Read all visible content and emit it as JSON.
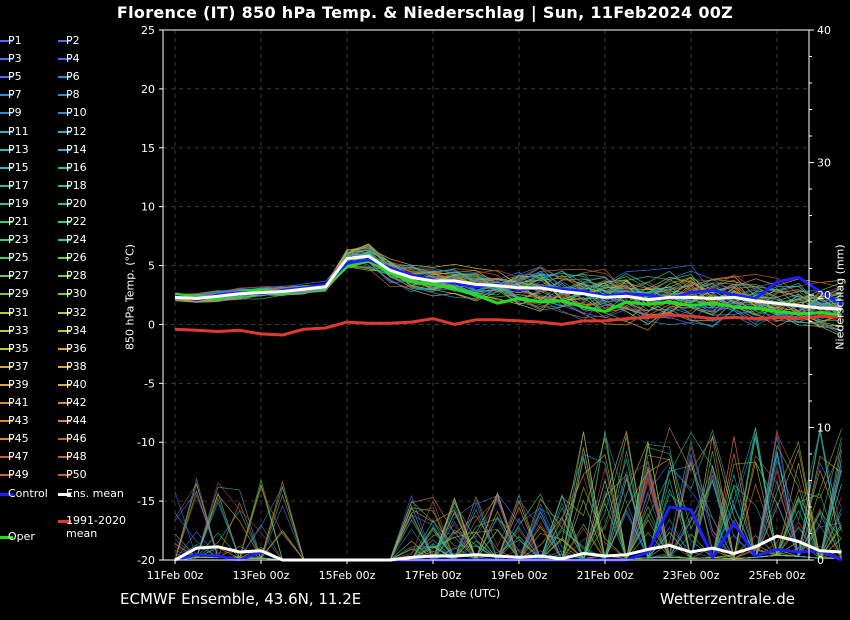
{
  "header": {
    "title": "Florence  (IT)  850 hPa Temp. & Niederschlag | Sun, 11Feb2024 00Z"
  },
  "footer": {
    "left": "ECMWF Ensemble, 43.6N, 11.2E",
    "right": "Wetterzentrale.de"
  },
  "colors": {
    "background": "#000000",
    "ens_mean": "#ffffff",
    "control": "#1e1eff",
    "oper": "#22dd22",
    "climate_mean": "#e03a30"
  },
  "chart_data": {
    "type": "line",
    "x_unit": "date (UTC)",
    "x_ticks": [
      "11Feb 00z",
      "13Feb 00z",
      "15Feb 00z",
      "17Feb 00z",
      "19Feb 00z",
      "21Feb 00z",
      "23Feb 00z",
      "25Feb 00z"
    ],
    "x": [
      "11Feb 00z",
      "11Feb 12z",
      "12Feb 00z",
      "12Feb 12z",
      "13Feb 00z",
      "13Feb 12z",
      "14Feb 00z",
      "14Feb 12z",
      "15Feb 00z",
      "15Feb 12z",
      "16Feb 00z",
      "16Feb 12z",
      "17Feb 00z",
      "17Feb 12z",
      "18Feb 00z",
      "18Feb 12z",
      "19Feb 00z",
      "19Feb 12z",
      "20Feb 00z",
      "20Feb 12z",
      "21Feb 00z",
      "21Feb 12z",
      "22Feb 00z",
      "22Feb 12z",
      "23Feb 00z",
      "23Feb 12z",
      "24Feb 00z",
      "24Feb 12z",
      "25Feb 00z",
      "25Feb 12z",
      "26Feb 00z",
      "26Feb 12z"
    ],
    "xlabel": "Date (UTC)",
    "ylabel_left": "850 hPa Temp. (°C)",
    "ylabel_right": "Niederschlag (mm)",
    "ylim_left": [
      -20,
      25
    ],
    "ylim_right": [
      0,
      40
    ],
    "yticks_left": [
      "25",
      "20",
      "15",
      "10",
      "5",
      "0",
      "-5",
      "-10",
      "-15",
      "-20"
    ],
    "yticks_right": [
      "40",
      "30",
      "20",
      "10",
      "0"
    ],
    "grid": true,
    "legend_position": "left",
    "legend": [
      "P1",
      "P2",
      "P3",
      "P4",
      "P5",
      "P6",
      "P7",
      "P8",
      "P9",
      "P10",
      "P11",
      "P12",
      "P13",
      "P14",
      "P15",
      "P16",
      "P17",
      "P18",
      "P19",
      "P20",
      "P21",
      "P22",
      "P23",
      "P24",
      "P25",
      "P26",
      "P27",
      "P28",
      "P29",
      "P30",
      "P31",
      "P32",
      "P33",
      "P34",
      "P35",
      "P36",
      "P37",
      "P38",
      "P39",
      "P40",
      "P41",
      "P42",
      "P43",
      "P44",
      "P45",
      "P46",
      "P47",
      "P48",
      "P49",
      "P50",
      "Control",
      "Ens. mean",
      "1991-2020\nmean",
      "Oper"
    ],
    "series": [
      {
        "name": "Ens. mean",
        "axis": "temp",
        "color": "#ffffff",
        "values": [
          2.3,
          2.2,
          2.4,
          2.6,
          2.7,
          2.8,
          3.0,
          3.2,
          5.6,
          5.8,
          4.6,
          4.0,
          3.7,
          3.7,
          3.4,
          3.3,
          3.1,
          3.1,
          2.8,
          2.6,
          2.3,
          2.4,
          2.1,
          2.3,
          2.3,
          2.2,
          2.3,
          2.0,
          1.8,
          1.6,
          1.4,
          1.3
        ]
      },
      {
        "name": "1991-2020\nmean",
        "axis": "temp",
        "color": "#e03a30",
        "values": [
          -0.4,
          -0.5,
          -0.6,
          -0.5,
          -0.8,
          -0.9,
          -0.4,
          -0.3,
          0.2,
          0.1,
          0.1,
          0.2,
          0.5,
          0.0,
          0.4,
          0.4,
          0.3,
          0.2,
          0.0,
          0.3,
          0.3,
          0.5,
          0.6,
          0.8,
          0.7,
          0.5,
          0.6,
          0.5,
          0.6,
          0.5,
          0.7,
          0.6
        ]
      },
      {
        "name": "Control",
        "axis": "temp",
        "color": "#1e1eff",
        "values": [
          2.4,
          2.1,
          2.5,
          2.7,
          2.6,
          2.9,
          3.1,
          3.4,
          5.2,
          5.5,
          4.8,
          4.2,
          3.8,
          3.5,
          3.2,
          3.4,
          2.9,
          3.2,
          3.0,
          2.8,
          2.4,
          2.6,
          2.5,
          2.2,
          2.7,
          2.9,
          2.5,
          2.2,
          3.6,
          4.0,
          2.8,
          1.7
        ]
      },
      {
        "name": "Oper",
        "axis": "temp",
        "color": "#22dd22",
        "values": [
          2.6,
          2.3,
          2.2,
          2.8,
          2.9,
          2.6,
          3.2,
          3.3,
          4.9,
          5.4,
          4.4,
          3.6,
          3.4,
          3.0,
          2.5,
          1.8,
          2.2,
          1.9,
          2.0,
          1.5,
          1.1,
          1.9,
          1.7,
          1.9,
          1.6,
          1.8,
          1.5,
          1.4,
          1.1,
          0.9,
          1.0,
          0.8
        ]
      },
      {
        "name": "Ens. mean",
        "axis": "precip",
        "color": "#ffffff",
        "values": [
          0.0,
          0.9,
          1.0,
          0.6,
          0.7,
          0.0,
          0.0,
          0.0,
          0.0,
          0.0,
          0.0,
          0.2,
          0.3,
          0.3,
          0.4,
          0.3,
          0.2,
          0.3,
          0.1,
          0.5,
          0.3,
          0.4,
          0.8,
          1.1,
          0.6,
          0.9,
          0.5,
          1.0,
          1.8,
          1.4,
          0.7,
          0.6
        ]
      },
      {
        "name": "Control",
        "axis": "precip",
        "color": "#1e1eff",
        "values": [
          0.0,
          0.4,
          0.3,
          0.0,
          0.6,
          0.0,
          0.0,
          0.0,
          0.0,
          0.0,
          0.0,
          0.0,
          0.0,
          0.0,
          0.0,
          0.0,
          0.0,
          0.0,
          0.0,
          0.0,
          0.0,
          0.0,
          0.6,
          4.0,
          3.8,
          0.2,
          2.8,
          0.3,
          0.8,
          0.6,
          0.7,
          0.0
        ]
      }
    ]
  }
}
